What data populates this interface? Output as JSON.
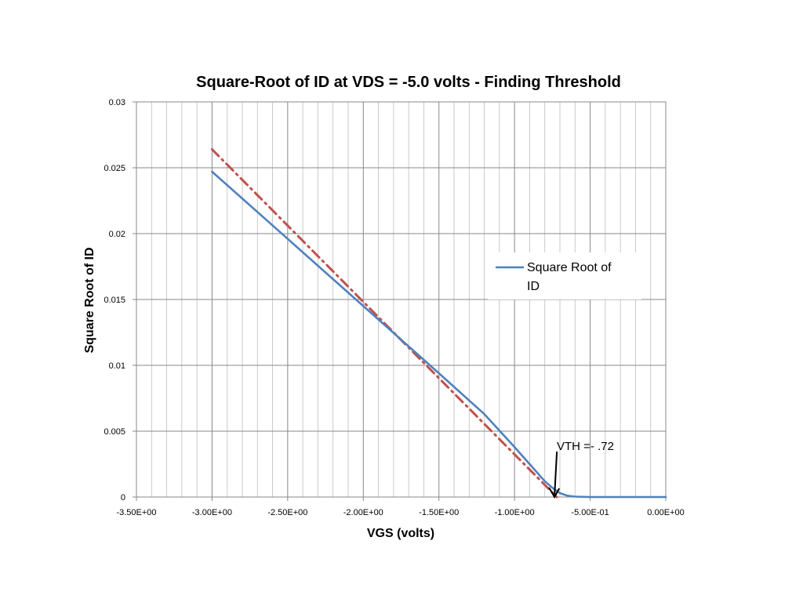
{
  "chart_data": {
    "type": "line",
    "title": "Square-Root of ID at VDS = -5.0 volts - Finding Threshold",
    "xlabel": "VGS (volts)",
    "ylabel": "Square Root of ID",
    "xlim": [
      -3.5,
      0
    ],
    "ylim": [
      0,
      0.03
    ],
    "x_ticks": [
      -3.5,
      -3.0,
      -2.5,
      -2.0,
      -1.5,
      -1.0,
      -0.5,
      0
    ],
    "x_tick_labels": [
      "-3.50E+00",
      "-3.00E+00",
      "-2.50E+00",
      "-2.00E+00",
      "-1.50E+00",
      "-1.00E+00",
      "-5.00E-01",
      "0.00E+00"
    ],
    "y_ticks": [
      0,
      0.005,
      0.01,
      0.015,
      0.02,
      0.025,
      0.03
    ],
    "y_tick_labels": [
      "0",
      "0.005",
      "0.01",
      "0.015",
      "0.02",
      "0.025",
      "0.03"
    ],
    "grid": true,
    "legend_position": "right",
    "series": [
      {
        "name": "Square Root of ID",
        "color": "#4f81bd",
        "style": "solid",
        "x": [
          -3.0,
          -2.5,
          -2.0,
          -1.5,
          -1.2,
          -1.0,
          -0.9,
          -0.8,
          -0.75,
          -0.7,
          -0.65,
          -0.6,
          -0.5,
          -0.4,
          -0.3,
          0.0
        ],
        "y": [
          0.0247,
          0.0196,
          0.0145,
          0.0094,
          0.0063,
          0.0038,
          0.0025,
          0.0012,
          0.0007,
          0.0003,
          0.0001,
          3e-05,
          0.0,
          0.0,
          0.0,
          0.0
        ]
      },
      {
        "name": "",
        "color": "#c0504d",
        "style": "dash-dot",
        "x": [
          -3.0,
          -0.72
        ],
        "y": [
          0.0264,
          0.0
        ]
      }
    ],
    "annotations": [
      {
        "text": "VTH =- .72",
        "x": -0.72,
        "y": 0.0
      }
    ]
  }
}
